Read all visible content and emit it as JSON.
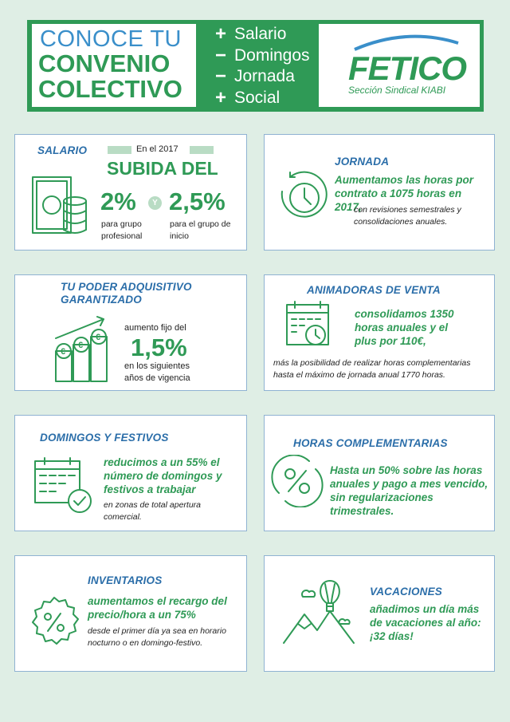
{
  "header": {
    "title_line1": "CONOCE TU",
    "title_line2": "CONVENIO",
    "title_line3": "COLECTIVO",
    "items": [
      {
        "sign": "+",
        "label": "Salario"
      },
      {
        "sign": "−",
        "label": "Domingos"
      },
      {
        "sign": "−",
        "label": "Jornada"
      },
      {
        "sign": "+",
        "label": "Social"
      }
    ],
    "logo_text": "FETICO",
    "logo_sub": "Sección Sindical KIABI"
  },
  "salario": {
    "title": "SALARIO",
    "year": "En el 2017",
    "headline": "SUBIDA DEL",
    "pct1": "2%",
    "and": "Y",
    "pct2": "2,5%",
    "desc1": "para grupo profesional",
    "desc2": "para el grupo de inicio"
  },
  "jornada": {
    "title": "JORNADA",
    "highlight": "Aumentamos las horas por contrato a 1075 horas en 2017,",
    "text": "con revisiones semestrales y consolidaciones anuales."
  },
  "poder": {
    "title": "TU PODER ADQUISITIVO GARANTIZADO",
    "pre": "aumento fijo del",
    "pct": "1,5%",
    "post": "en los siguientes años de vigencia"
  },
  "animadoras": {
    "title": "ANIMADORAS DE VENTA",
    "highlight": "consolidamos 1350 horas anuales y el plus por 110€,",
    "text": "más la posibilidad de realizar horas complementarias hasta el máximo de jornada anual 1770 horas."
  },
  "domingos": {
    "title": "DOMINGOS Y FESTIVOS",
    "highlight": "reducimos a un 55% el número de domingos y festivos a trabajar",
    "text": "en zonas de total apertura comercial."
  },
  "complementarias": {
    "title": "HORAS COMPLEMENTARIAS",
    "highlight": "Hasta un 50% sobre las horas anuales y pago a mes vencido, sin regularizaciones trimestrales."
  },
  "inventarios": {
    "title": "INVENTARIOS",
    "highlight": "aumentamos el recargo del precio/hora a un 75%",
    "text": "desde el primer día ya sea en horario nocturno o en domingo-festivo."
  },
  "vacaciones": {
    "title": "VACACIONES",
    "highlight": "añadimos un día más de vacaciones al año: ¡32 días!"
  },
  "colors": {
    "green": "#2f9a56",
    "blue": "#2b6ea9",
    "background": "#dfeee5"
  }
}
